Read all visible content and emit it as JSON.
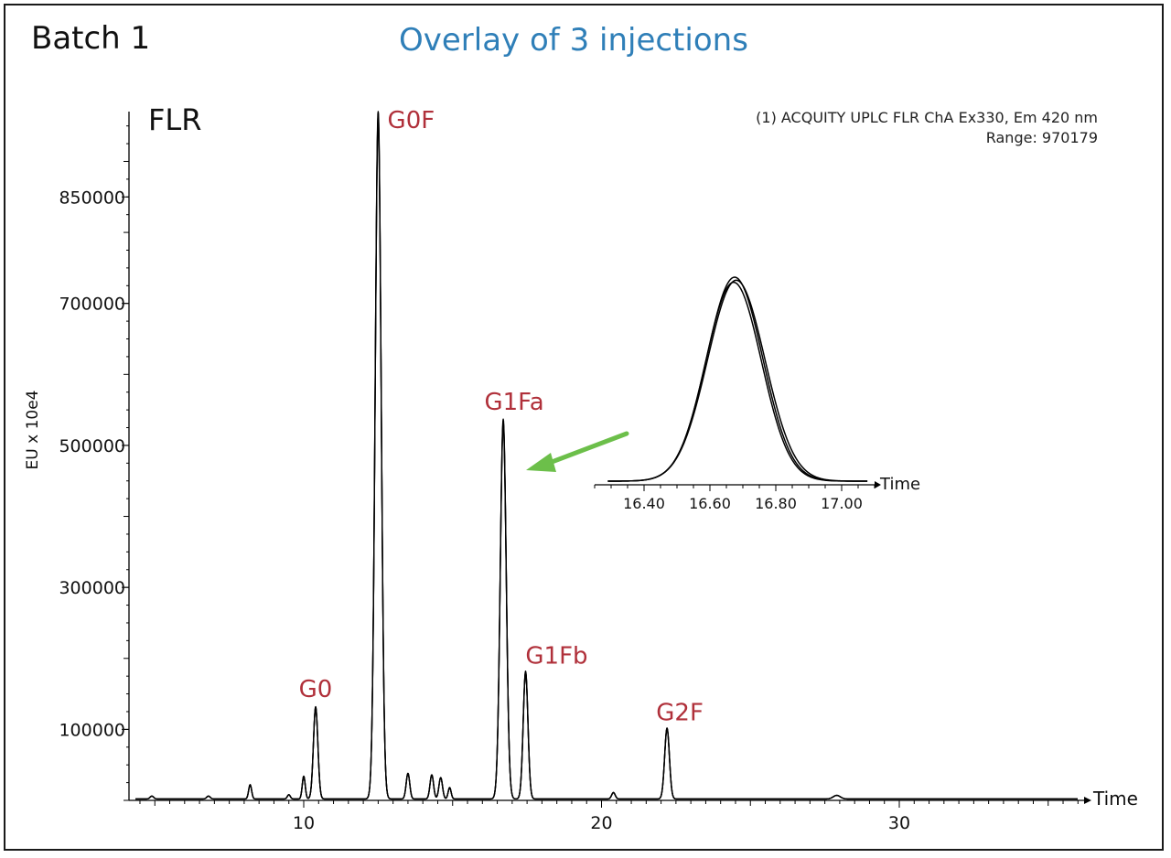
{
  "header": {
    "batch_label": "Batch 1",
    "overlay_title": "Overlay of 3 injections"
  },
  "colors": {
    "title_blue": "#2f7fb8",
    "peak_label_red": "#b0303a",
    "arrow_green": "#6cbf4a",
    "trace": "#000000"
  },
  "chart_data": {
    "type": "line",
    "detector_label": "FLR",
    "info_line_1": "(1) ACQUITY UPLC FLR ChA Ex330, Em 420 nm",
    "info_line_2": "Range: 970179",
    "ylabel": "EU x 10e4",
    "xlabel": "Time",
    "xlim": [
      4.3,
      36.3
    ],
    "ylim": [
      0,
      970179
    ],
    "x_ticks": [
      10,
      20,
      30
    ],
    "y_ticks": [
      100000,
      300000,
      500000,
      700000,
      850000
    ],
    "x_tick_labels": [
      "10",
      "20",
      "30"
    ],
    "y_tick_labels": [
      "100000",
      "300000",
      "500000",
      "700000",
      "850000"
    ],
    "grid": false,
    "baseline": 2000,
    "peaks": [
      {
        "name": "G0",
        "x": 10.4,
        "y": 130000,
        "sigma": 0.075,
        "label": "G0"
      },
      {
        "name": "G0F",
        "x": 12.5,
        "y": 970000,
        "sigma": 0.1,
        "label": "G0F"
      },
      {
        "name": "G1Fa",
        "x": 16.7,
        "y": 535000,
        "sigma": 0.1,
        "label": "G1Fa"
      },
      {
        "name": "G1Fb",
        "x": 17.45,
        "y": 180000,
        "sigma": 0.08,
        "label": "G1Fb"
      },
      {
        "name": "G2F",
        "x": 22.2,
        "y": 100000,
        "sigma": 0.08,
        "label": "G2F"
      },
      {
        "name": "minor",
        "x": 8.2,
        "y": 20000,
        "sigma": 0.05,
        "label": ""
      },
      {
        "name": "minor",
        "x": 10.0,
        "y": 32000,
        "sigma": 0.05,
        "label": ""
      },
      {
        "name": "minor",
        "x": 13.5,
        "y": 36000,
        "sigma": 0.06,
        "label": ""
      },
      {
        "name": "minor",
        "x": 14.3,
        "y": 34000,
        "sigma": 0.06,
        "label": ""
      },
      {
        "name": "minor",
        "x": 14.6,
        "y": 30000,
        "sigma": 0.06,
        "label": ""
      },
      {
        "name": "minor",
        "x": 14.9,
        "y": 16000,
        "sigma": 0.05,
        "label": ""
      },
      {
        "name": "minor",
        "x": 20.4,
        "y": 9000,
        "sigma": 0.06,
        "label": ""
      },
      {
        "name": "minor",
        "x": 27.9,
        "y": 5000,
        "sigma": 0.12,
        "label": ""
      },
      {
        "name": "minor",
        "x": 4.9,
        "y": 4000,
        "sigma": 0.06,
        "label": ""
      },
      {
        "name": "minor",
        "x": 6.8,
        "y": 4000,
        "sigma": 0.06,
        "label": ""
      },
      {
        "name": "minor",
        "x": 9.5,
        "y": 6000,
        "sigma": 0.05,
        "label": ""
      }
    ],
    "inset": {
      "xlabel": "Time",
      "xlim": [
        16.25,
        17.1
      ],
      "x_ticks": [
        16.4,
        16.6,
        16.8,
        17.0
      ],
      "x_tick_labels": [
        "16.40",
        "16.60",
        "16.80",
        "17.00"
      ],
      "series": [
        {
          "name": "1",
          "center": 16.675,
          "sigma": 0.085,
          "height": 1.0
        },
        {
          "name": "2",
          "center": 16.68,
          "sigma": 0.087,
          "height": 0.985
        },
        {
          "name": "3",
          "center": 16.672,
          "sigma": 0.084,
          "height": 0.975
        }
      ]
    }
  }
}
